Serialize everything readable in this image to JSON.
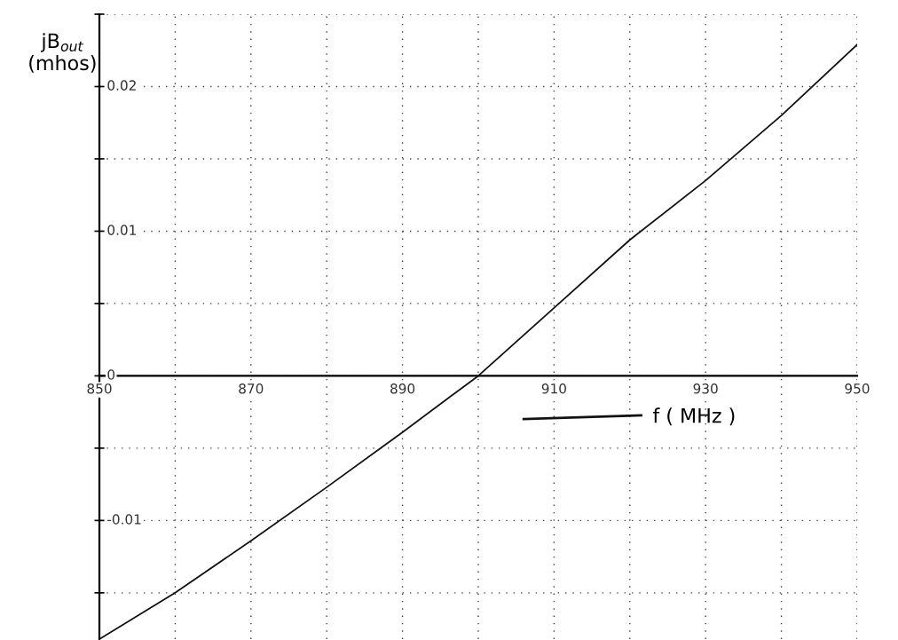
{
  "chart_data": {
    "type": "line",
    "xlabel": "f ( MHz )",
    "ylabel": "jB$_{out}$\n(mhos)",
    "x": [
      850,
      860,
      870,
      880,
      890,
      900,
      910,
      920,
      930,
      940,
      950
    ],
    "series": [
      {
        "color": "#111111",
        "values": [
          -0.0182,
          -0.015,
          -0.0114,
          -0.0077,
          -0.0039,
          0,
          0.0047,
          0.0094,
          0.0135,
          0.018,
          0.0229
        ]
      }
    ],
    "xlim": [
      850,
      950
    ],
    "ylim": [
      -0.0182,
      0.025
    ],
    "xticks": [
      850,
      {
        "value": 860,
        "label": null
      },
      870,
      {
        "value": 880,
        "label": null
      },
      890,
      {
        "value": 900,
        "label": null
      },
      910,
      {
        "value": 920,
        "label": null
      },
      930,
      {
        "value": 940,
        "label": null
      },
      950
    ],
    "yticks": [
      {
        "value": -0.015,
        "label": null
      },
      {
        "value": -0.01,
        "label": "-0.01"
      },
      {
        "value": -0.005,
        "label": null
      },
      0,
      {
        "value": 0.005,
        "label": null
      },
      0.01,
      {
        "value": 0.015,
        "label": null
      },
      0.02,
      {
        "value": 0.025,
        "label": null
      }
    ],
    "grid": true,
    "marker": "none",
    "line_style": "solid",
    "legend": false
  }
}
